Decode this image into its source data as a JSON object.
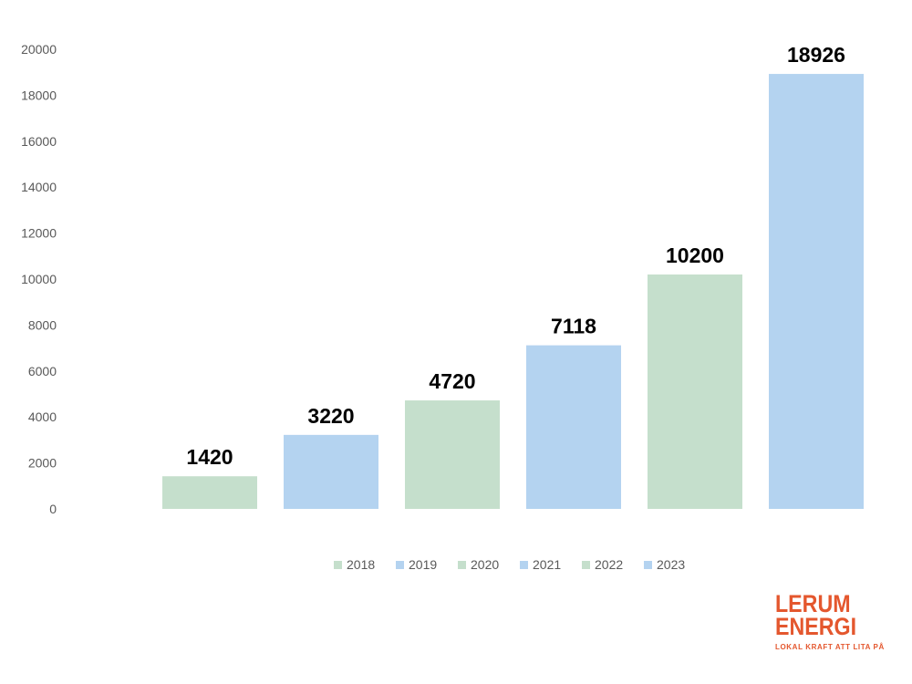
{
  "chart_data": {
    "type": "bar",
    "categories": [
      "2018",
      "2019",
      "2020",
      "2021",
      "2022",
      "2023"
    ],
    "values": [
      1420,
      3220,
      4720,
      7118,
      10200,
      18926
    ],
    "data_labels": [
      "1420",
      "3220",
      "4720",
      "7118",
      "10200",
      "18926"
    ],
    "yticks": [
      "0",
      "2000",
      "4000",
      "6000",
      "8000",
      "10000",
      "12000",
      "14000",
      "16000",
      "18000",
      "20000"
    ],
    "ylim": [
      0,
      20000
    ],
    "grid": false,
    "legend": {
      "position": "bottom",
      "entries": [
        "2018",
        "2019",
        "2020",
        "2021",
        "2022",
        "2023"
      ]
    },
    "colors": [
      "#c5dfcc",
      "#b4d3f0",
      "#c5dfcc",
      "#b4d3f0",
      "#c5dfcc",
      "#b4d3f0"
    ],
    "title": "",
    "xlabel": "",
    "ylabel": ""
  },
  "logo": {
    "line1": "LERUM",
    "line2": "ENERGI",
    "tagline": "LOKAL KRAFT ATT LITA PÅ",
    "color": "#e4572e"
  }
}
